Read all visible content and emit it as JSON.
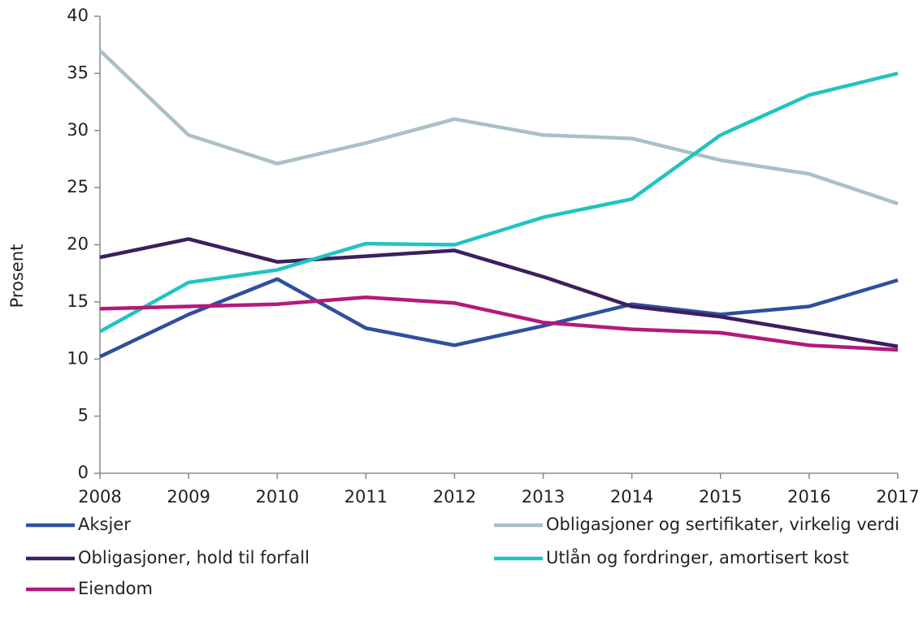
{
  "chart_data": {
    "type": "line",
    "y_label": "Prosent",
    "x": [
      2008,
      2009,
      2010,
      2011,
      2012,
      2013,
      2014,
      2015,
      2016,
      2017
    ],
    "xlim": [
      2008,
      2017
    ],
    "xticks": [
      2008,
      2009,
      2010,
      2011,
      2012,
      2013,
      2014,
      2015,
      2016,
      2017
    ],
    "ylim": [
      0,
      40
    ],
    "yticks": [
      0,
      5,
      10,
      15,
      20,
      25,
      30,
      35,
      40
    ],
    "grid": false,
    "series": [
      {
        "name": "Aksjer",
        "color": "#2f4f9e",
        "values": [
          10.2,
          13.9,
          17.0,
          12.7,
          11.2,
          12.9,
          14.8,
          13.9,
          14.6,
          16.9
        ]
      },
      {
        "name": "Obligasjoner og sertifikater, virkelig verdi",
        "color": "#a9c0c7",
        "values": [
          37.0,
          29.6,
          27.1,
          28.9,
          31.0,
          29.6,
          29.3,
          27.4,
          26.2,
          23.6
        ]
      },
      {
        "name": "Obligasjoner, hold til forfall",
        "color": "#3b1f5e",
        "values": [
          18.9,
          20.5,
          18.5,
          19.0,
          19.5,
          17.2,
          14.6,
          13.7,
          12.4,
          11.1
        ]
      },
      {
        "name": "Utlån og fordringer, amortisert kost",
        "color": "#20c4c0",
        "values": [
          12.4,
          16.7,
          17.8,
          20.1,
          20.0,
          22.4,
          24.0,
          29.6,
          33.1,
          35.0
        ]
      },
      {
        "name": "Eiendom",
        "color": "#b3197c",
        "values": [
          14.4,
          14.6,
          14.8,
          15.4,
          14.9,
          13.2,
          12.6,
          12.3,
          11.2,
          10.8
        ]
      }
    ]
  }
}
